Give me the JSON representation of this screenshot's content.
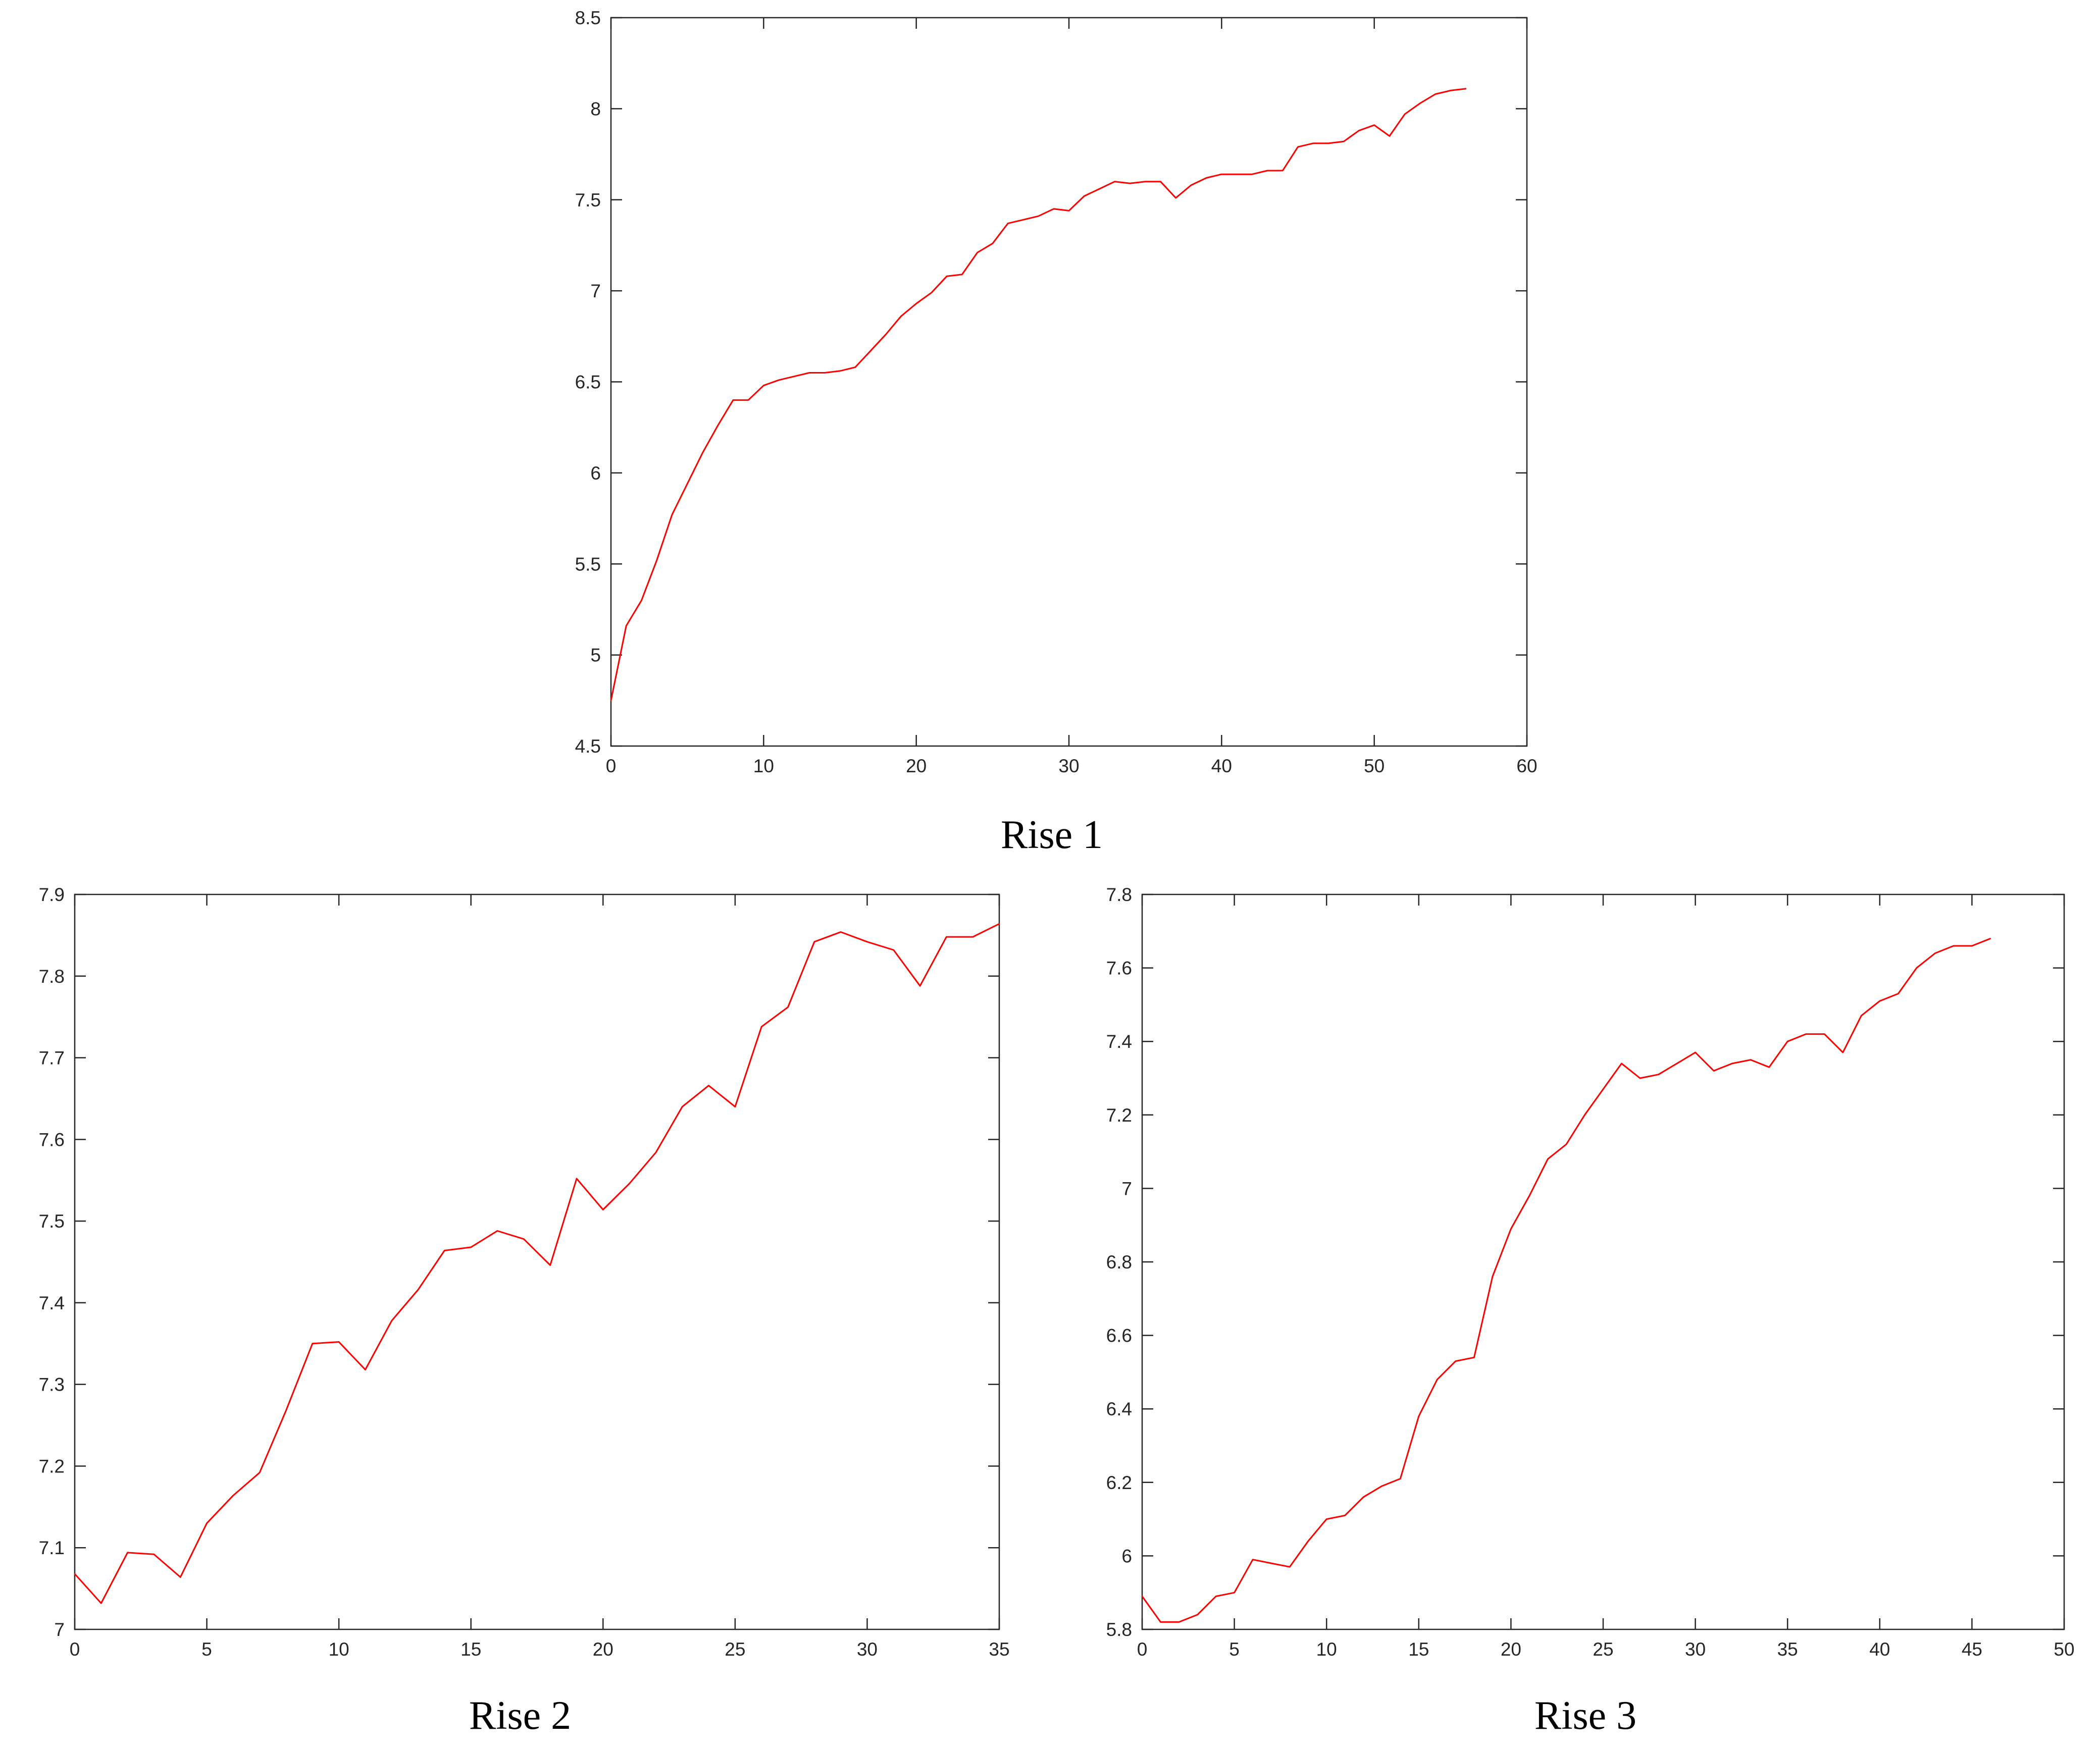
{
  "figure": {
    "line_color": "#ff0000",
    "axis_color": "#262626"
  },
  "chart_data": [
    {
      "type": "line",
      "caption": "Rise 1",
      "title": "",
      "xlabel": "",
      "ylabel": "",
      "xlim": [
        0,
        60
      ],
      "ylim": [
        4.5,
        8.5
      ],
      "xticks": [
        "0",
        "10",
        "20",
        "30",
        "40",
        "50",
        "60"
      ],
      "yticks": [
        "4.5",
        "5",
        "5.5",
        "6",
        "6.5",
        "7",
        "7.5",
        "8",
        "8.5"
      ],
      "grid": false,
      "series": [
        {
          "x": [
            0,
            1,
            2,
            3,
            4,
            5,
            6,
            7,
            8,
            9,
            10,
            11,
            12,
            13,
            14,
            15,
            16,
            17,
            18,
            19,
            20,
            21,
            22,
            23,
            24,
            25,
            26,
            27,
            28,
            29,
            30,
            31,
            32,
            33,
            34,
            35,
            36,
            37,
            38,
            39,
            40,
            41,
            42,
            43,
            44,
            45,
            46,
            47,
            48,
            49,
            50,
            51,
            52,
            53,
            54,
            55,
            56
          ],
          "y": [
            4.75,
            5.16,
            5.3,
            5.52,
            5.77,
            5.94,
            6.11,
            6.26,
            6.4,
            6.4,
            6.48,
            6.51,
            6.53,
            6.55,
            6.55,
            6.56,
            6.58,
            6.67,
            6.76,
            6.86,
            6.93,
            6.99,
            7.08,
            7.09,
            7.21,
            7.26,
            7.37,
            7.39,
            7.41,
            7.45,
            7.44,
            7.52,
            7.56,
            7.6,
            7.59,
            7.6,
            7.6,
            7.51,
            7.58,
            7.62,
            7.64,
            7.64,
            7.64,
            7.66,
            7.66,
            7.79,
            7.81,
            7.81,
            7.82,
            7.88,
            7.91,
            7.85,
            7.97,
            8.03,
            8.08,
            8.1,
            8.11
          ]
        }
      ]
    },
    {
      "type": "line",
      "caption": "Rise 2",
      "title": "",
      "xlabel": "",
      "ylabel": "",
      "xlim": [
        0,
        35
      ],
      "ylim": [
        7,
        7.9
      ],
      "xticks": [
        "0",
        "5",
        "10",
        "15",
        "20",
        "25",
        "30",
        "35"
      ],
      "yticks": [
        "7",
        "7.1",
        "7.2",
        "7.3",
        "7.4",
        "7.5",
        "7.6",
        "7.7",
        "7.8",
        "7.9"
      ],
      "grid": false,
      "series": [
        {
          "x": [
            0,
            1,
            2,
            3,
            4,
            5,
            6,
            7,
            8,
            9,
            10,
            11,
            12,
            13,
            14,
            15,
            16,
            17,
            18,
            19,
            20,
            21,
            22,
            23,
            24,
            25,
            26,
            27,
            28,
            29,
            30,
            31,
            32,
            33,
            34,
            35
          ],
          "y": [
            7.068,
            7.032,
            7.094,
            7.092,
            7.064,
            7.13,
            7.164,
            7.192,
            7.268,
            7.35,
            7.352,
            7.318,
            7.378,
            7.416,
            7.464,
            7.468,
            7.488,
            7.478,
            7.446,
            7.552,
            7.514,
            7.546,
            7.584,
            7.64,
            7.666,
            7.64,
            7.738,
            7.762,
            7.842,
            7.854,
            7.842,
            7.832,
            7.788,
            7.848,
            7.848,
            7.864
          ]
        }
      ]
    },
    {
      "type": "line",
      "caption": "Rise 3",
      "title": "",
      "xlabel": "",
      "ylabel": "",
      "xlim": [
        0,
        50
      ],
      "ylim": [
        5.8,
        7.8
      ],
      "xticks": [
        "0",
        "5",
        "10",
        "15",
        "20",
        "25",
        "30",
        "35",
        "40",
        "45",
        "50"
      ],
      "yticks": [
        "5.8",
        "6",
        "6.2",
        "6.4",
        "6.6",
        "6.8",
        "7",
        "7.2",
        "7.4",
        "7.6",
        "7.8"
      ],
      "grid": false,
      "series": [
        {
          "x": [
            0,
            1,
            2,
            3,
            4,
            5,
            6,
            7,
            8,
            9,
            10,
            11,
            12,
            13,
            14,
            15,
            16,
            17,
            18,
            19,
            20,
            21,
            22,
            23,
            24,
            25,
            26,
            27,
            28,
            29,
            30,
            31,
            32,
            33,
            34,
            35,
            36,
            37,
            38,
            39,
            40,
            41,
            42,
            43,
            44,
            45,
            46
          ],
          "y": [
            5.89,
            5.82,
            5.82,
            5.84,
            5.89,
            5.9,
            5.99,
            5.98,
            5.97,
            6.04,
            6.1,
            6.11,
            6.16,
            6.19,
            6.21,
            6.38,
            6.48,
            6.53,
            6.54,
            6.76,
            6.89,
            6.98,
            7.08,
            7.12,
            7.2,
            7.27,
            7.34,
            7.3,
            7.31,
            7.34,
            7.37,
            7.32,
            7.34,
            7.35,
            7.33,
            7.4,
            7.42,
            7.42,
            7.37,
            7.47,
            7.51,
            7.53,
            7.6,
            7.64,
            7.66,
            7.66,
            7.68
          ]
        }
      ]
    }
  ]
}
